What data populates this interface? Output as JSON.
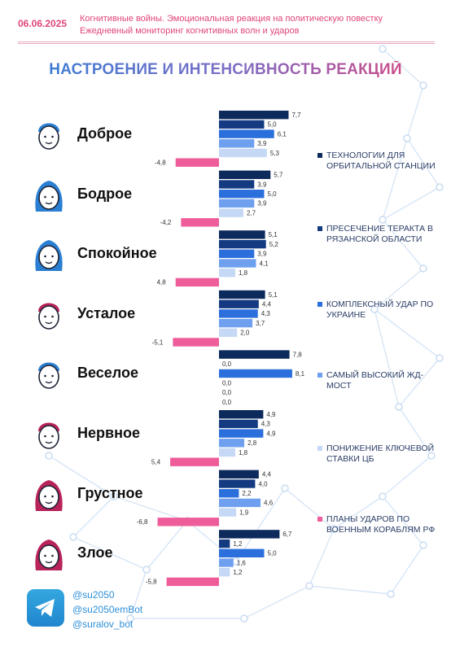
{
  "header": {
    "date": "06.06.2025",
    "line1": "Когнитивные войны. Эмоциональная реакция на политическую повестку",
    "line2": "Ежедневный мониторинг когнитивных волн и ударов"
  },
  "title": "НАСТРОЕНИЕ И ИНТЕНСИВНОСТЬ РЕАКЦИЙ",
  "colors": {
    "accent_pink": "#e0457b",
    "series": [
      "#0d2a5c",
      "#143b82",
      "#2b6fdc",
      "#6fa0f0",
      "#c5d8f5",
      "#ee5d9a"
    ]
  },
  "chart_data": {
    "type": "bar",
    "orientation": "horizontal",
    "categories": [
      "Доброе",
      "Бодрое",
      "Спокойное",
      "Усталое",
      "Веселое",
      "Нервное",
      "Грустное",
      "Злое"
    ],
    "face_icons": [
      "male-face-icon",
      "female-face-icon",
      "female-face-icon",
      "male-face-icon",
      "male-face-icon",
      "male-face-icon",
      "female-face-icon",
      "female-face-icon"
    ],
    "face_colors": [
      "#2a7fd3",
      "#2a7fd3",
      "#2a7fd3",
      "#b8235a",
      "#2a7fd3",
      "#b8235a",
      "#b8235a",
      "#b8235a"
    ],
    "series": [
      {
        "name": "ТЕХНОЛОГИИ ДЛЯ ОРБИТАЛЬНОЙ СТАНЦИИ",
        "values": [
          7.7,
          5.7,
          5.1,
          5.1,
          7.8,
          4.9,
          4.4,
          6.7
        ]
      },
      {
        "name": "ПРЕСЕЧЕНИЕ ТЕРАКТА В РЯЗАНСКОЙ ОБЛАСТИ",
        "values": [
          5.0,
          3.9,
          5.2,
          4.4,
          0.0,
          4.3,
          4.0,
          1.2
        ]
      },
      {
        "name": "КОМПЛЕКСНЫЙ УДАР ПО УКРАИНЕ",
        "values": [
          6.1,
          5.0,
          3.9,
          4.3,
          8.1,
          4.9,
          2.2,
          5.0
        ]
      },
      {
        "name": "САМЫЙ ВЫСОКИЙ ЖД-МОСТ",
        "values": [
          3.9,
          3.9,
          4.1,
          3.7,
          0.0,
          2.8,
          4.6,
          1.6
        ]
      },
      {
        "name": "ПОНИЖЕНИЕ КЛЮЧЕВОЙ СТАВКИ ЦБ",
        "values": [
          5.3,
          2.7,
          1.8,
          2.0,
          0.0,
          1.8,
          1.9,
          1.2
        ]
      },
      {
        "name": "ПЛАНЫ УДАРОВ ПО ВОЕННЫМ КОРАБЛЯМ РФ",
        "values": [
          -4.8,
          -4.2,
          4.8,
          -5.1,
          0.0,
          5.4,
          -6.8,
          -5.8
        ]
      }
    ],
    "value_labels": [
      [
        "7,7",
        "5,0",
        "6,1",
        "3,9",
        "5,3",
        "-4,8"
      ],
      [
        "5,7",
        "3,9",
        "5,0",
        "3,9",
        "2,7",
        "-4,2"
      ],
      [
        "5,1",
        "5,2",
        "3,9",
        "4,1",
        "1,8",
        "4,8"
      ],
      [
        "5,1",
        "4,4",
        "4,3",
        "3,7",
        "2,0",
        "-5,1"
      ],
      [
        "7,8",
        "0,0",
        "8,1",
        "0,0",
        "0,0",
        "0,0"
      ],
      [
        "4,9",
        "4,3",
        "4,9",
        "2,8",
        "1,8",
        "5,4"
      ],
      [
        "4,4",
        "4,0",
        "2,2",
        "4,6",
        "1,9",
        "-6,8"
      ],
      [
        "6,7",
        "1,2",
        "5,0",
        "1,6",
        "1,2",
        "-5,8"
      ]
    ],
    "last_series_drawn_left": [
      true,
      true,
      true,
      true,
      false,
      true,
      true,
      true
    ],
    "xlim": [
      -9,
      9
    ],
    "legend_position": "right"
  },
  "footer": {
    "handles": [
      "@su2050",
      "@su2050emBot",
      "@suralov_bot"
    ]
  }
}
